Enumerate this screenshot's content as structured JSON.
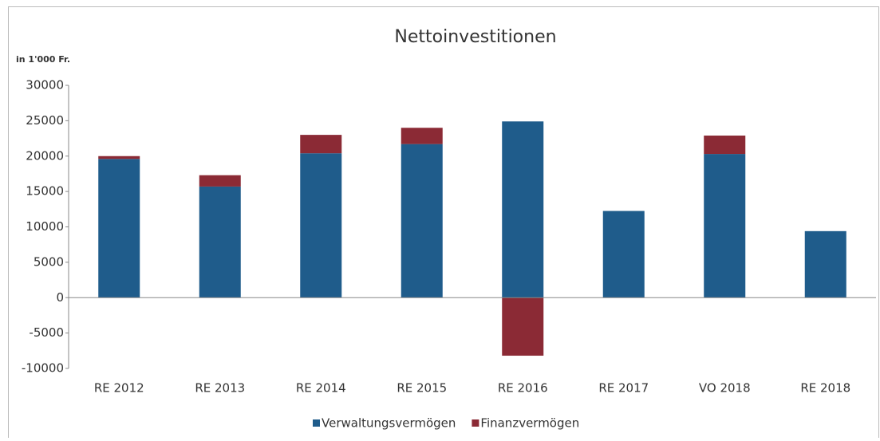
{
  "chart_data": {
    "type": "stacked_bar",
    "title": "Nettoinvestitionen",
    "unit_label": "in 1'000 Fr.",
    "categories": [
      "RE 2012",
      "RE 2013",
      "RE 2014",
      "RE 2015",
      "RE 2016",
      "RE 2017",
      "VO 2018",
      "RE 2018"
    ],
    "series": [
      {
        "name": "Verwaltungsvermögen",
        "color": "#1f5c8b",
        "values": [
          19600,
          15700,
          20400,
          21700,
          24900,
          12250,
          20300,
          9400
        ]
      },
      {
        "name": "Finanzvermögen",
        "color": "#8b2a35",
        "values": [
          400,
          1600,
          2600,
          2300,
          -8200,
          0,
          2600,
          0
        ]
      }
    ],
    "ylim": [
      -10000,
      30000
    ],
    "yticks": [
      -10000,
      -5000,
      0,
      5000,
      10000,
      15000,
      20000,
      25000,
      30000
    ],
    "grid": false,
    "legend": "bottom"
  }
}
